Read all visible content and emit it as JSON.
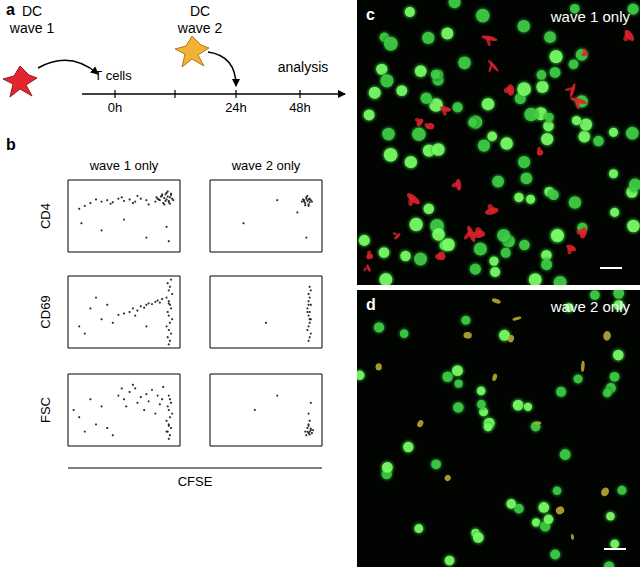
{
  "panel_a": {
    "label": "a",
    "dc1": [
      "DC",
      "wave 1"
    ],
    "dc2": [
      "DC",
      "wave 2"
    ],
    "t_cells": "T cells",
    "times": [
      "0h",
      "24h",
      "48h"
    ],
    "analysis": "analysis"
  },
  "panel_b": {
    "label": "b",
    "columns": [
      "wave 1 only",
      "wave 2 only"
    ],
    "rows": [
      "CD4",
      "CD69",
      "FSC"
    ],
    "xlabel": "CFSE"
  },
  "panel_c": {
    "label": "c",
    "title": "wave 1 only"
  },
  "panel_d": {
    "label": "d",
    "title": "wave 2 only"
  },
  "chart_data": [
    {
      "type": "scatter",
      "color": "#000000",
      "tick_labels": false,
      "xlim": [
        0,
        100
      ],
      "ylim": [
        0,
        100
      ],
      "x": [
        78,
        80,
        82,
        84,
        85,
        86,
        87,
        88,
        89,
        90,
        91,
        92,
        93,
        94,
        88,
        86,
        84,
        90,
        92,
        83,
        81,
        79,
        87,
        89,
        91,
        70,
        65,
        60,
        55,
        50,
        45,
        40,
        35,
        30,
        25,
        20,
        15,
        10,
        62,
        48,
        38,
        72,
        58,
        12,
        30,
        50,
        70,
        88,
        90
      ],
      "values": [
        70,
        74,
        72,
        78,
        68,
        75,
        80,
        73,
        77,
        71,
        76,
        79,
        74,
        72,
        82,
        66,
        80,
        69,
        81,
        77,
        73,
        76,
        71,
        84,
        67,
        72,
        74,
        70,
        73,
        71,
        74,
        69,
        72,
        70,
        73,
        68,
        64,
        60,
        78,
        76,
        67,
        66,
        68,
        40,
        30,
        45,
        20,
        35,
        15
      ]
    },
    {
      "type": "scatter",
      "color": "#000000",
      "tick_labels": false,
      "xlim": [
        0,
        100
      ],
      "ylim": [
        0,
        100
      ],
      "x": [
        82,
        84,
        85,
        86,
        87,
        88,
        89,
        90,
        86,
        88,
        84,
        87,
        89,
        85,
        91,
        83,
        88,
        60,
        30,
        86,
        78
      ],
      "values": [
        70,
        72,
        68,
        74,
        71,
        73,
        69,
        72,
        76,
        66,
        70,
        78,
        74,
        65,
        70,
        73,
        64,
        72,
        40,
        20,
        55
      ]
    },
    {
      "type": "scatter",
      "color": "#000000",
      "tick_labels": false,
      "xlim": [
        0,
        100
      ],
      "ylim": [
        0,
        100
      ],
      "x": [
        90,
        91,
        89,
        92,
        90,
        88,
        91,
        93,
        90,
        89,
        92,
        91,
        90,
        88,
        93,
        90,
        91,
        89,
        92,
        90,
        45,
        50,
        55,
        58,
        62,
        65,
        68,
        70,
        72,
        75,
        78,
        80,
        82,
        84,
        60,
        10,
        20,
        30,
        40,
        35,
        15,
        25,
        70
      ],
      "values": [
        5,
        10,
        15,
        20,
        25,
        30,
        35,
        40,
        45,
        50,
        55,
        60,
        65,
        70,
        75,
        80,
        85,
        90,
        95,
        62,
        46,
        48,
        50,
        55,
        52,
        58,
        56,
        60,
        62,
        61,
        64,
        66,
        63,
        68,
        45,
        30,
        55,
        40,
        35,
        60,
        20,
        70,
        30
      ]
    },
    {
      "type": "scatter",
      "color": "#000000",
      "tick_labels": false,
      "xlim": [
        0,
        100
      ],
      "ylim": [
        0,
        100
      ],
      "x": [
        88,
        89,
        90,
        87,
        88,
        89,
        90,
        88,
        89,
        87,
        90,
        88,
        89,
        88,
        90,
        89,
        87,
        88,
        89,
        50
      ],
      "values": [
        10,
        15,
        20,
        25,
        30,
        35,
        40,
        45,
        50,
        55,
        60,
        65,
        70,
        75,
        80,
        85,
        50,
        60,
        40,
        35
      ]
    },
    {
      "type": "scatter",
      "color": "#000000",
      "tick_labels": false,
      "xlim": [
        0,
        100
      ],
      "ylim": [
        0,
        100
      ],
      "x": [
        90,
        91,
        89,
        92,
        90,
        88,
        91,
        93,
        90,
        89,
        92,
        91,
        90,
        88,
        90,
        45,
        50,
        55,
        60,
        65,
        70,
        75,
        80,
        85,
        52,
        62,
        72,
        82,
        58,
        68,
        78,
        48,
        84,
        10,
        15,
        25,
        30,
        20,
        35,
        40,
        5
      ],
      "values": [
        10,
        15,
        20,
        25,
        30,
        35,
        40,
        45,
        50,
        55,
        60,
        65,
        70,
        20,
        28,
        70,
        65,
        75,
        80,
        68,
        72,
        78,
        70,
        82,
        55,
        60,
        62,
        58,
        85,
        50,
        45,
        80,
        65,
        40,
        20,
        30,
        55,
        65,
        25,
        15,
        50
      ]
    },
    {
      "type": "scatter",
      "color": "#000000",
      "tick_labels": false,
      "xlim": [
        0,
        100
      ],
      "ylim": [
        0,
        100
      ],
      "x": [
        86,
        88,
        89,
        90,
        87,
        91,
        88,
        89,
        90,
        87,
        88,
        92,
        89,
        85,
        88,
        90,
        60,
        40
      ],
      "values": [
        15,
        18,
        20,
        22,
        25,
        18,
        28,
        16,
        24,
        20,
        30,
        22,
        35,
        20,
        45,
        60,
        70,
        50
      ]
    }
  ]
}
